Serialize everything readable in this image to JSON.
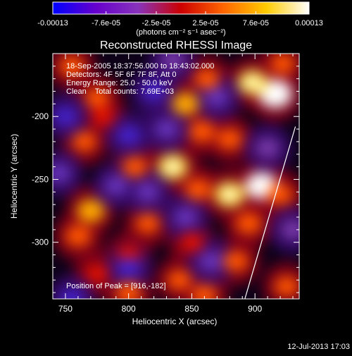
{
  "chart_data": {
    "type": "heatmap",
    "title": "Reconstructed RHESSI Image",
    "xlabel": "Heliocentric X (arcsec)",
    "ylabel": "Heliocentric Y (arcsec)",
    "xlim": [
      740,
      935
    ],
    "ylim": [
      -345,
      -150
    ],
    "x_ticks": [
      750,
      800,
      850,
      900
    ],
    "x_tick_labels": [
      "750",
      "800",
      "850",
      "900"
    ],
    "y_ticks": [
      -200,
      -250,
      -300
    ],
    "y_tick_labels": [
      "-200",
      "-250",
      "-300"
    ],
    "colorbar": {
      "range": [
        -0.00013,
        0.00013
      ],
      "tick_values": [
        -0.00013,
        -7.6e-05,
        -2.5e-05,
        2.5e-05,
        7.6e-05,
        0.00013
      ],
      "tick_labels": [
        "-0.00013",
        "-7.6e-05",
        "-2.5e-05",
        "2.5e-05",
        "7.6e-05",
        "0.00013"
      ],
      "units_label": "(photons cm⁻² s⁻¹ asec⁻²)",
      "colors": [
        "#0000ff",
        "#6600cc",
        "#8833bb",
        "#cc0000",
        "#ff6600",
        "#ffcc00",
        "#ffffff"
      ]
    },
    "annotations": [
      "18-Sep-2005 18:37:56.000 to 18:43:02.000",
      "Detectors: 4F 5F 6F 7F 8F, Att 0",
      "Energy Range: 25.0 - 50.0 keV",
      "Clean    Total counts: 7.69E+03"
    ],
    "peak_label": "Position of Peak = [916,-182]",
    "peak": {
      "x": 916,
      "y": -182
    },
    "limb_line": [
      {
        "x": 932,
        "y": -208
      },
      {
        "x": 892,
        "y": -345
      }
    ],
    "sources": [
      {
        "x": 916,
        "y": -182,
        "v": 1.0
      },
      {
        "x": 898,
        "y": -173,
        "v": 0.75
      },
      {
        "x": 922,
        "y": -158,
        "v": 0.45
      },
      {
        "x": 862,
        "y": -170,
        "v": 0.5
      },
      {
        "x": 845,
        "y": -190,
        "v": 0.6
      },
      {
        "x": 858,
        "y": -212,
        "v": 0.55
      },
      {
        "x": 880,
        "y": -218,
        "v": 0.5
      },
      {
        "x": 835,
        "y": -240,
        "v": 0.8
      },
      {
        "x": 805,
        "y": -240,
        "v": 0.5
      },
      {
        "x": 905,
        "y": -255,
        "v": 0.9
      },
      {
        "x": 880,
        "y": -262,
        "v": 0.8
      },
      {
        "x": 855,
        "y": -258,
        "v": 0.55
      },
      {
        "x": 920,
        "y": -262,
        "v": 0.5
      },
      {
        "x": 895,
        "y": -285,
        "v": 0.55
      },
      {
        "x": 770,
        "y": -275,
        "v": 0.65
      },
      {
        "x": 760,
        "y": -295,
        "v": 0.55
      },
      {
        "x": 815,
        "y": -285,
        "v": 0.45
      },
      {
        "x": 765,
        "y": -220,
        "v": 0.45
      },
      {
        "x": 780,
        "y": -200,
        "v": 0.4
      },
      {
        "x": 755,
        "y": -160,
        "v": 0.5
      },
      {
        "x": 775,
        "y": -185,
        "v": 0.45
      },
      {
        "x": 850,
        "y": -300,
        "v": 0.4
      },
      {
        "x": 885,
        "y": -315,
        "v": 0.5
      },
      {
        "x": 775,
        "y": -325,
        "v": 0.4
      },
      {
        "x": 800,
        "y": -340,
        "v": 0.55
      },
      {
        "x": 840,
        "y": -330,
        "v": 0.45
      },
      {
        "x": 860,
        "y": -342,
        "v": 0.5
      },
      {
        "x": 925,
        "y": -335,
        "v": 0.45
      },
      {
        "x": 800,
        "y": -310,
        "v": 0.35
      },
      {
        "x": 870,
        "y": -185,
        "v": -0.45
      },
      {
        "x": 820,
        "y": -180,
        "v": -0.55
      },
      {
        "x": 800,
        "y": -215,
        "v": -0.5
      },
      {
        "x": 830,
        "y": -210,
        "v": -0.45
      },
      {
        "x": 790,
        "y": -255,
        "v": -0.45
      },
      {
        "x": 815,
        "y": -260,
        "v": -0.4
      },
      {
        "x": 800,
        "y": -320,
        "v": -0.55
      },
      {
        "x": 845,
        "y": -280,
        "v": -0.45
      },
      {
        "x": 750,
        "y": -200,
        "v": -0.6
      },
      {
        "x": 745,
        "y": -245,
        "v": -0.4
      },
      {
        "x": 755,
        "y": -345,
        "v": -0.5
      },
      {
        "x": 865,
        "y": -315,
        "v": -0.4
      },
      {
        "x": 910,
        "y": -225,
        "v": -0.3
      },
      {
        "x": 930,
        "y": -290,
        "v": -0.35
      },
      {
        "x": 835,
        "y": -155,
        "v": -0.3
      }
    ]
  },
  "footer": {
    "timestamp": "12-Jul-2013 17:03"
  }
}
